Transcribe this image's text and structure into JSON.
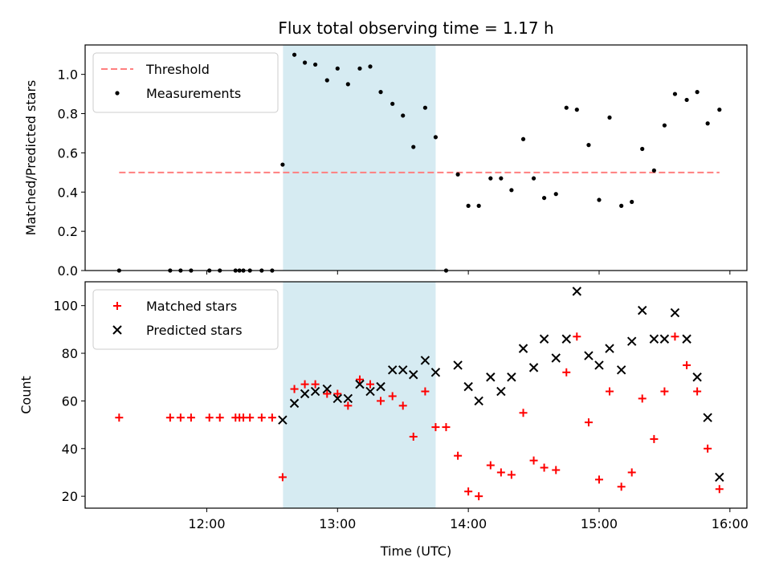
{
  "chart_data": {
    "title": "Flux total observing time = 1.17 h",
    "xlabel": "Time (UTC)",
    "x_ticks": [
      "12:00",
      "13:00",
      "14:00",
      "15:00",
      "16:00"
    ],
    "x_tick_hours": [
      12,
      13,
      14,
      15,
      16
    ],
    "xlim_hours": [
      11.07,
      16.13
    ],
    "shaded_interval_hours": [
      12.583,
      13.75
    ],
    "panels": [
      {
        "type": "scatter",
        "ylabel": "Matched/Predicted stars",
        "ylim": [
          0,
          1.15
        ],
        "y_ticks": [
          0.0,
          0.2,
          0.4,
          0.6,
          0.8,
          1.0
        ],
        "y_tick_labels": [
          "0.0",
          "0.2",
          "0.4",
          "0.6",
          "0.8",
          "1.0"
        ],
        "legend_position": "upper-left",
        "threshold": {
          "name": "Threshold",
          "value": 0.5,
          "x_start": 11.33,
          "x_end": 15.92,
          "color": "#ff7f7f"
        },
        "series": [
          {
            "name": "Measurements",
            "color": "#000000",
            "marker": "dot",
            "points": [
              [
                11.33,
                0.0
              ],
              [
                11.72,
                0.0
              ],
              [
                11.8,
                0.0
              ],
              [
                11.88,
                0.0
              ],
              [
                12.02,
                0.0
              ],
              [
                12.1,
                0.0
              ],
              [
                12.22,
                0.0
              ],
              [
                12.25,
                0.0
              ],
              [
                12.28,
                0.0
              ],
              [
                12.33,
                0.0
              ],
              [
                12.42,
                0.0
              ],
              [
                12.5,
                0.0
              ],
              [
                12.58,
                0.54
              ],
              [
                12.67,
                1.1
              ],
              [
                12.75,
                1.06
              ],
              [
                12.83,
                1.05
              ],
              [
                12.92,
                0.97
              ],
              [
                13.0,
                1.03
              ],
              [
                13.08,
                0.95
              ],
              [
                13.17,
                1.03
              ],
              [
                13.25,
                1.04
              ],
              [
                13.33,
                0.91
              ],
              [
                13.42,
                0.85
              ],
              [
                13.5,
                0.79
              ],
              [
                13.58,
                0.63
              ],
              [
                13.67,
                0.83
              ],
              [
                13.75,
                0.68
              ],
              [
                13.83,
                0.0
              ],
              [
                13.92,
                0.49
              ],
              [
                14.0,
                0.33
              ],
              [
                14.08,
                0.33
              ],
              [
                14.17,
                0.47
              ],
              [
                14.25,
                0.47
              ],
              [
                14.33,
                0.41
              ],
              [
                14.42,
                0.67
              ],
              [
                14.5,
                0.47
              ],
              [
                14.58,
                0.37
              ],
              [
                14.67,
                0.39
              ],
              [
                14.75,
                0.83
              ],
              [
                14.83,
                0.82
              ],
              [
                14.92,
                0.64
              ],
              [
                15.0,
                0.36
              ],
              [
                15.08,
                0.78
              ],
              [
                15.17,
                0.33
              ],
              [
                15.25,
                0.35
              ],
              [
                15.33,
                0.62
              ],
              [
                15.42,
                0.51
              ],
              [
                15.5,
                0.74
              ],
              [
                15.58,
                0.9
              ],
              [
                15.67,
                0.87
              ],
              [
                15.75,
                0.91
              ],
              [
                15.83,
                0.75
              ],
              [
                15.92,
                0.82
              ]
            ]
          }
        ]
      },
      {
        "type": "scatter",
        "ylabel": "Count",
        "ylim": [
          15,
          110
        ],
        "y_ticks": [
          20,
          40,
          60,
          80,
          100
        ],
        "y_tick_labels": [
          "20",
          "40",
          "60",
          "80",
          "100"
        ],
        "legend_position": "upper-left",
        "series": [
          {
            "name": "Matched stars",
            "color": "#ff0000",
            "marker": "plus",
            "points": [
              [
                11.33,
                53
              ],
              [
                11.72,
                53
              ],
              [
                11.8,
                53
              ],
              [
                11.88,
                53
              ],
              [
                12.02,
                53
              ],
              [
                12.1,
                53
              ],
              [
                12.22,
                53
              ],
              [
                12.25,
                53
              ],
              [
                12.28,
                53
              ],
              [
                12.33,
                53
              ],
              [
                12.42,
                53
              ],
              [
                12.5,
                53
              ],
              [
                12.58,
                28
              ],
              [
                12.67,
                65
              ],
              [
                12.75,
                67
              ],
              [
                12.83,
                67
              ],
              [
                12.92,
                63
              ],
              [
                13.0,
                63
              ],
              [
                13.08,
                58
              ],
              [
                13.17,
                69
              ],
              [
                13.25,
                67
              ],
              [
                13.33,
                60
              ],
              [
                13.42,
                62
              ],
              [
                13.5,
                58
              ],
              [
                13.58,
                45
              ],
              [
                13.67,
                64
              ],
              [
                13.75,
                49
              ],
              [
                13.83,
                49
              ],
              [
                13.92,
                37
              ],
              [
                14.0,
                22
              ],
              [
                14.08,
                20
              ],
              [
                14.17,
                33
              ],
              [
                14.25,
                30
              ],
              [
                14.33,
                29
              ],
              [
                14.42,
                55
              ],
              [
                14.5,
                35
              ],
              [
                14.58,
                32
              ],
              [
                14.67,
                31
              ],
              [
                14.75,
                72
              ],
              [
                14.83,
                87
              ],
              [
                14.92,
                51
              ],
              [
                15.0,
                27
              ],
              [
                15.08,
                64
              ],
              [
                15.17,
                24
              ],
              [
                15.25,
                30
              ],
              [
                15.33,
                61
              ],
              [
                15.42,
                44
              ],
              [
                15.5,
                64
              ],
              [
                15.58,
                87
              ],
              [
                15.67,
                75
              ],
              [
                15.75,
                64
              ],
              [
                15.83,
                40
              ],
              [
                15.92,
                23
              ]
            ]
          },
          {
            "name": "Predicted stars",
            "color": "#000000",
            "marker": "x",
            "points": [
              [
                12.58,
                52
              ],
              [
                12.67,
                59
              ],
              [
                12.75,
                63
              ],
              [
                12.83,
                64
              ],
              [
                12.92,
                65
              ],
              [
                13.0,
                61
              ],
              [
                13.08,
                61
              ],
              [
                13.17,
                67
              ],
              [
                13.25,
                64
              ],
              [
                13.33,
                66
              ],
              [
                13.42,
                73
              ],
              [
                13.5,
                73
              ],
              [
                13.58,
                71
              ],
              [
                13.67,
                77
              ],
              [
                13.75,
                72
              ],
              [
                13.92,
                75
              ],
              [
                14.0,
                66
              ],
              [
                14.08,
                60
              ],
              [
                14.17,
                70
              ],
              [
                14.25,
                64
              ],
              [
                14.33,
                70
              ],
              [
                14.42,
                82
              ],
              [
                14.5,
                74
              ],
              [
                14.58,
                86
              ],
              [
                14.67,
                78
              ],
              [
                14.75,
                86
              ],
              [
                14.83,
                106
              ],
              [
                14.92,
                79
              ],
              [
                15.0,
                75
              ],
              [
                15.08,
                82
              ],
              [
                15.17,
                73
              ],
              [
                15.25,
                85
              ],
              [
                15.33,
                98
              ],
              [
                15.42,
                86
              ],
              [
                15.5,
                86
              ],
              [
                15.58,
                97
              ],
              [
                15.67,
                86
              ],
              [
                15.75,
                70
              ],
              [
                15.83,
                53
              ],
              [
                15.92,
                28
              ]
            ]
          }
        ]
      }
    ]
  }
}
